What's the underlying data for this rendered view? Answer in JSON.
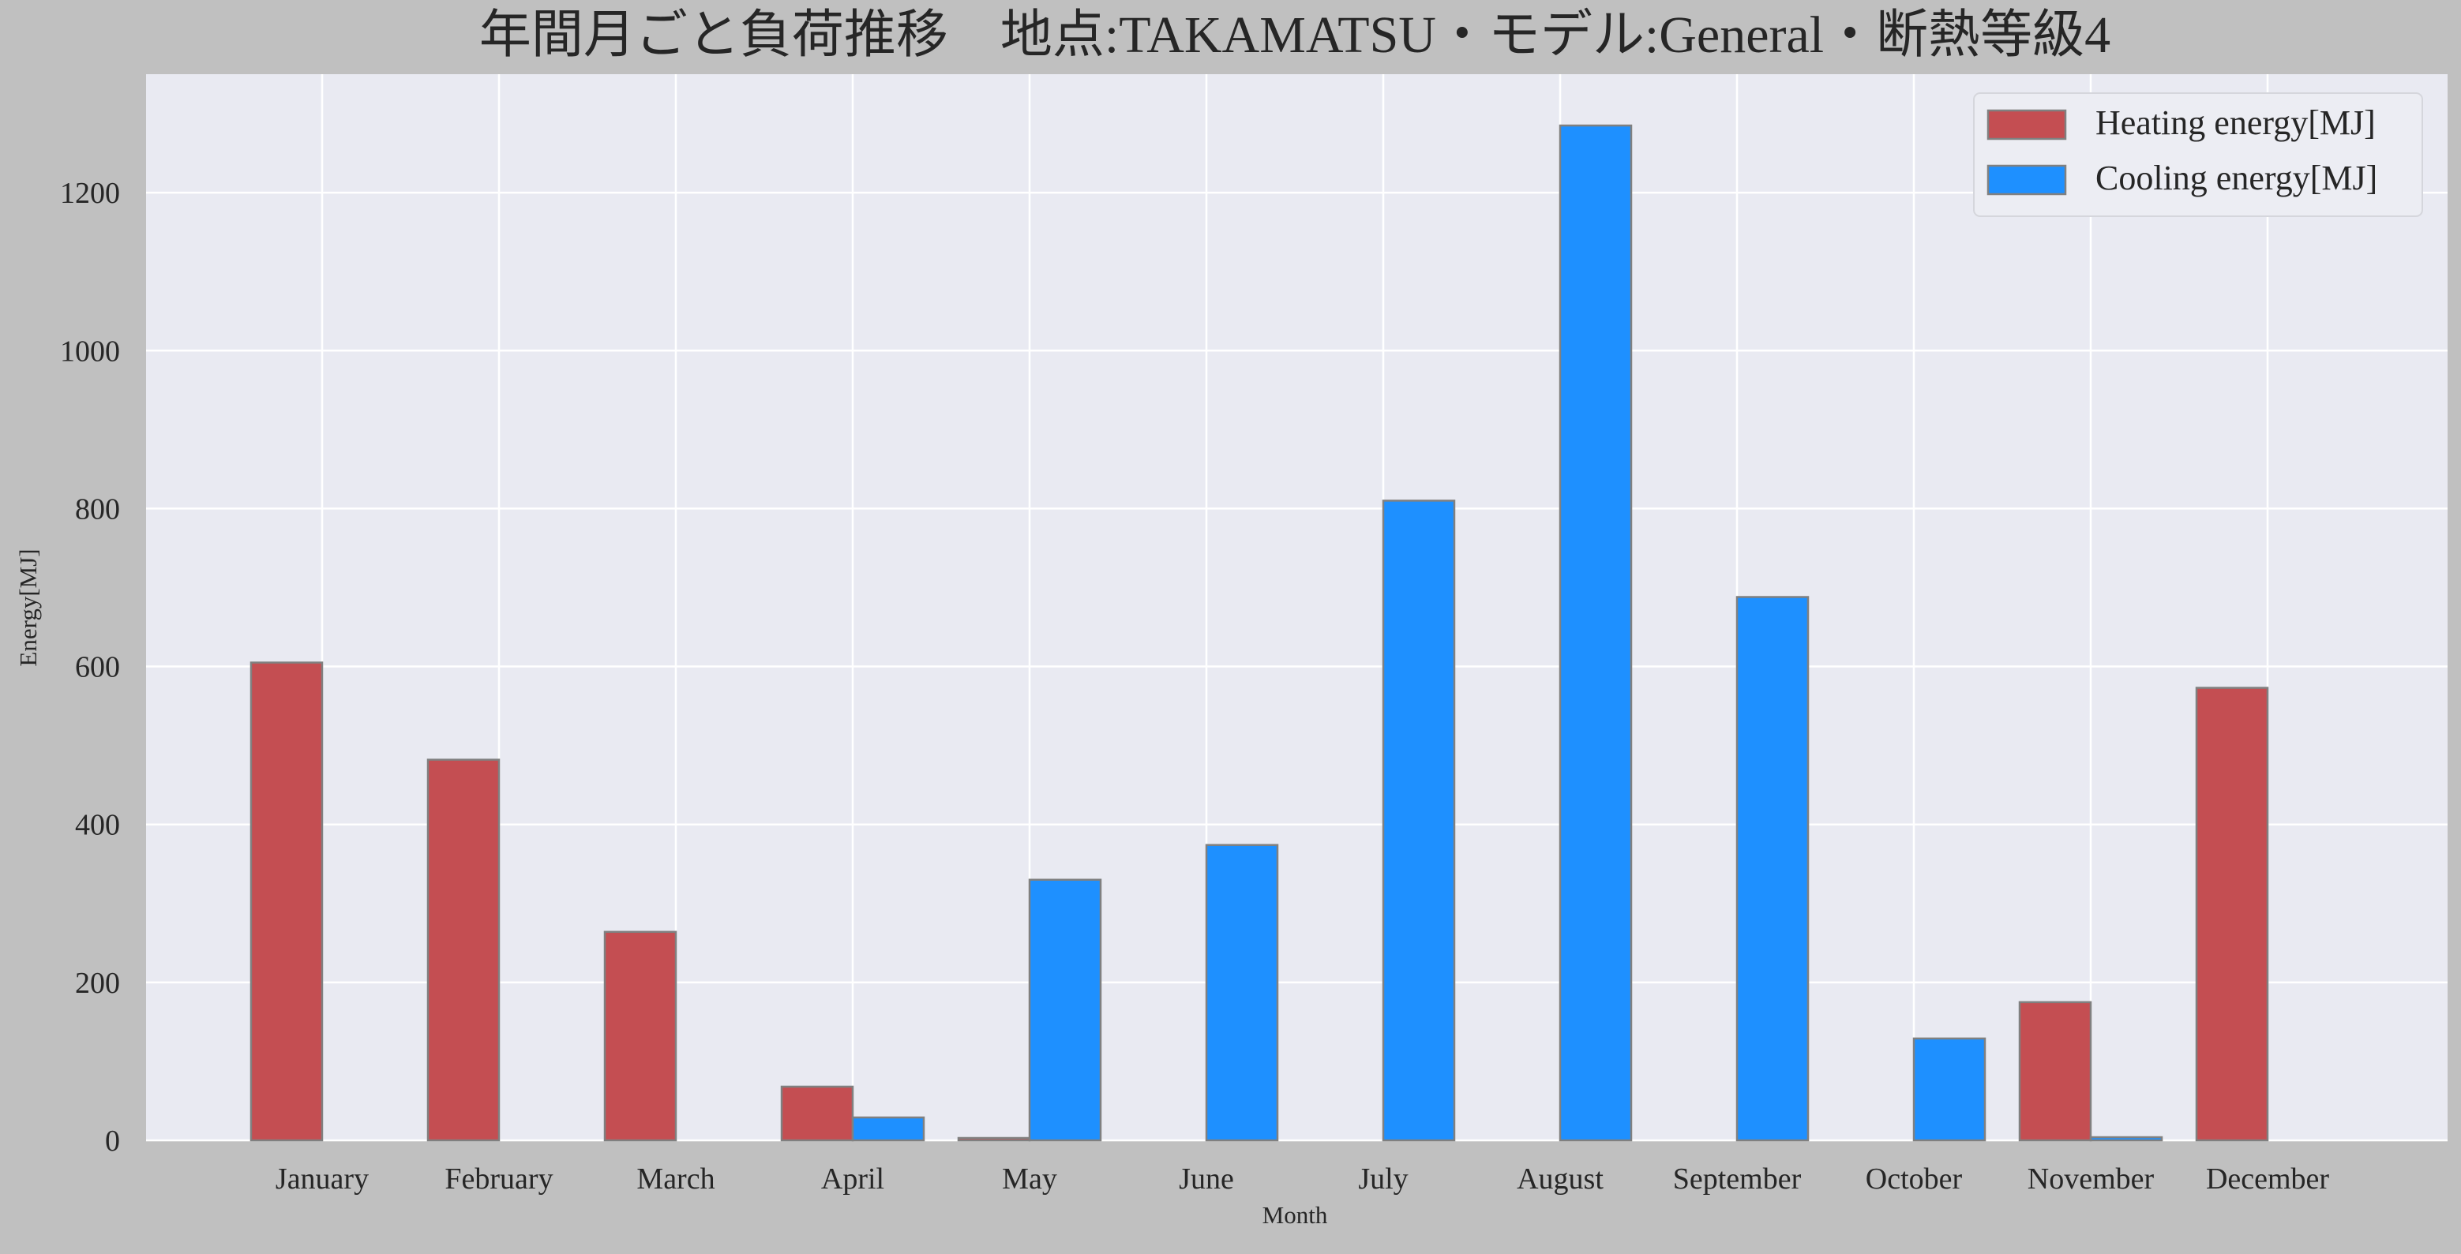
{
  "chart_data": {
    "type": "bar",
    "title": "年間月ごと負荷推移　地点:TAKAMATSU・モデル:General・断熱等級4",
    "xlabel": "Month",
    "ylabel": "Energy[MJ]",
    "categories": [
      "January",
      "February",
      "March",
      "April",
      "May",
      "June",
      "July",
      "August",
      "September",
      "October",
      "November",
      "December"
    ],
    "series": [
      {
        "name": "Heating energy[MJ]",
        "color": "#c44e52",
        "values": [
          605,
          482,
          264,
          68,
          3,
          0,
          0,
          0,
          0,
          0,
          175,
          573
        ]
      },
      {
        "name": "Cooling energy[MJ]",
        "color": "#1e90ff",
        "values": [
          0,
          0,
          0,
          29,
          330,
          374,
          810,
          1285,
          688,
          129,
          4,
          0
        ]
      }
    ],
    "ylim": [
      0,
      1350
    ],
    "yticks": [
      0,
      200,
      400,
      600,
      800,
      1000,
      1200
    ],
    "grid": true,
    "legend_position": "top-right",
    "colors": {
      "figure_bg": "#c0c0c0",
      "plot_bg": "#e9eaf2",
      "grid": "#ffffff",
      "bar_edge": "#808080"
    }
  }
}
